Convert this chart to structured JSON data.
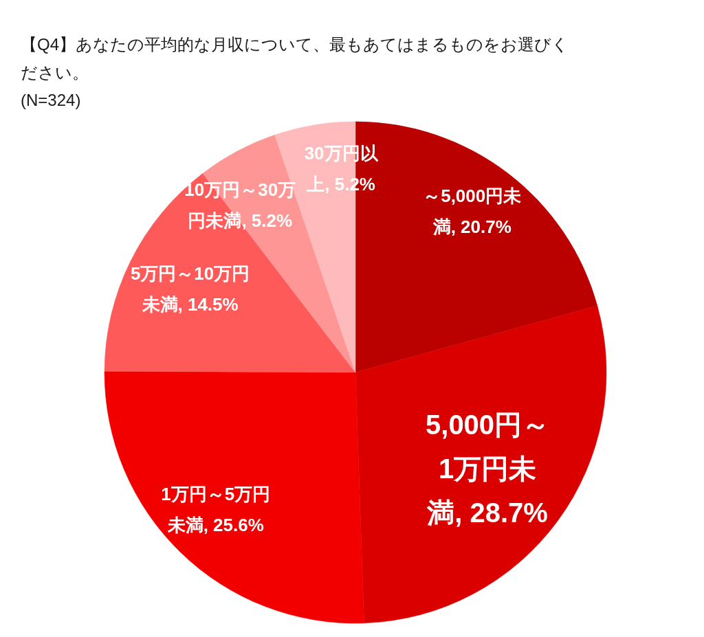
{
  "chart_data": {
    "type": "pie",
    "title": "【Q4】あなたの平均的な月収について、最もあてはまるものをお選びください。",
    "subtitle": "(N=324)",
    "categories": [
      "～5,000円未満",
      "5,000円～1万円未満",
      "1万円～5万円未満",
      "5万円～10万円未満",
      "10万円～30万円未満",
      "30万円以上"
    ],
    "values": [
      20.7,
      28.7,
      25.6,
      14.5,
      5.2,
      5.2
    ],
    "value_labels": [
      "20.7%",
      "28.7%",
      "25.6%",
      "14.5%",
      "5.2%",
      "5.2%"
    ],
    "colors": [
      "#bb0000",
      "#da0000",
      "#f20000",
      "#ff5a5a",
      "#ff9696",
      "#ffbbbb"
    ]
  }
}
